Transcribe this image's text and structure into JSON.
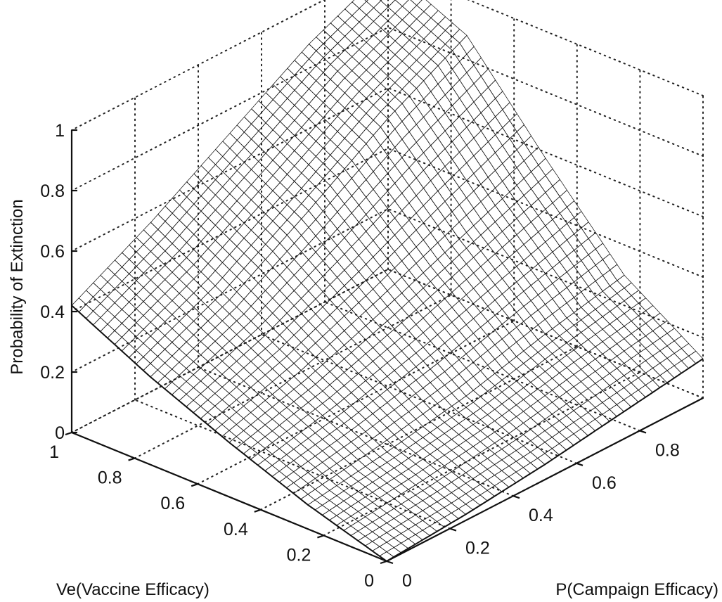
{
  "chart_data": {
    "type": "surface",
    "zlabel": "Probability of Extinction",
    "xlabel": "Ve(Vaccine Efficacy)",
    "ylabel": "P(Campaign Efficacy)",
    "xlim": [
      0,
      1
    ],
    "ylim": [
      0,
      1
    ],
    "zlim": [
      0,
      1
    ],
    "grid": true,
    "x_ticks": [
      "0",
      "0.2",
      "0.4",
      "0.6",
      "0.8",
      "1"
    ],
    "y_ticks": [
      "0",
      "0.2",
      "0.4",
      "0.6",
      "0.8"
    ],
    "z_ticks": [
      "0",
      "0.2",
      "0.4",
      "0.6",
      "0.8",
      "1"
    ],
    "corner_values": [
      {
        "ve": 0,
        "p": 0,
        "z": 0
      },
      {
        "ve": 1,
        "p": 0,
        "z": 0.42
      },
      {
        "ve": 0,
        "p": 1,
        "z": 0.13
      },
      {
        "ve": 1,
        "p": 1,
        "z": 1.0
      }
    ],
    "grid_samples": {
      "axis": [
        0,
        0.25,
        0.5,
        0.75,
        1.0
      ],
      "z_by_ve_rows": [
        [
          0.0,
          0.02,
          0.05,
          0.09,
          0.13
        ],
        [
          0.08,
          0.12,
          0.17,
          0.24,
          0.3
        ],
        [
          0.18,
          0.26,
          0.36,
          0.47,
          0.58
        ],
        [
          0.29,
          0.41,
          0.57,
          0.74,
          0.88
        ],
        [
          0.42,
          0.56,
          0.72,
          0.88,
          1.0
        ]
      ]
    }
  }
}
